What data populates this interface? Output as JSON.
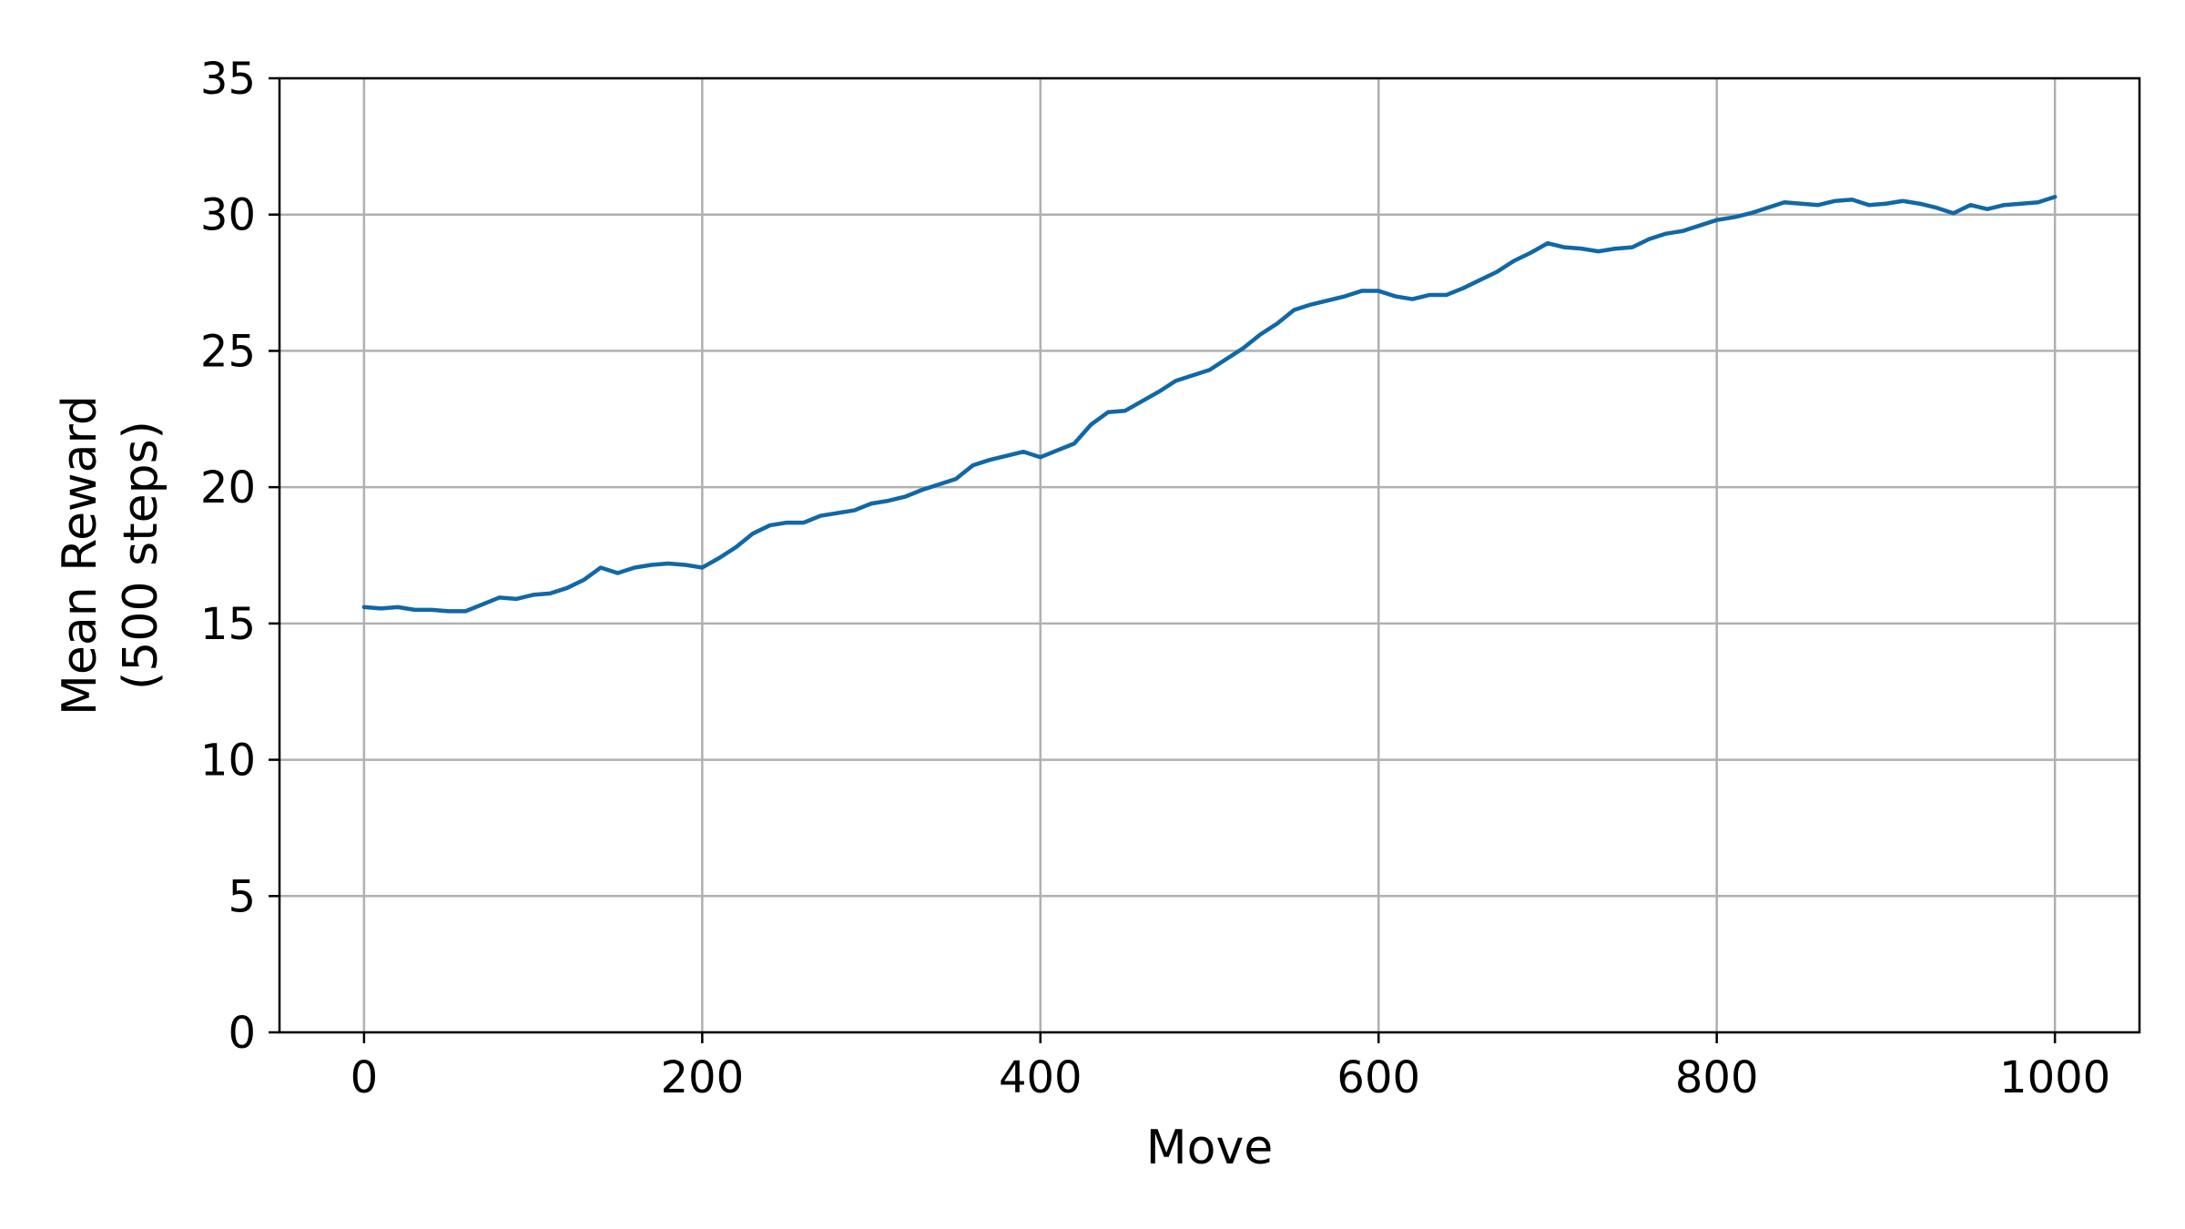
{
  "chart_data": {
    "type": "line",
    "title": "",
    "xlabel": "Move",
    "ylabel_lines": [
      "Mean Reward",
      "(500 steps)"
    ],
    "xlim": [
      -50,
      1050
    ],
    "ylim": [
      0,
      35
    ],
    "x_ticks": [
      0,
      200,
      400,
      600,
      800,
      1000
    ],
    "y_ticks": [
      0,
      5,
      10,
      15,
      20,
      25,
      30,
      35
    ],
    "grid": true,
    "legend": "none",
    "colors": {
      "line": "#1068a6",
      "grid": "#b0b0b0",
      "axis": "#000000"
    },
    "series": [
      {
        "x": [
          0,
          10,
          20,
          30,
          40,
          50,
          60,
          70,
          80,
          90,
          100,
          110,
          120,
          130,
          140,
          150,
          160,
          170,
          180,
          190,
          200,
          210,
          220,
          230,
          240,
          250,
          260,
          270,
          280,
          290,
          300,
          310,
          320,
          330,
          340,
          350,
          360,
          370,
          380,
          390,
          400,
          410,
          420,
          430,
          440,
          450,
          460,
          470,
          480,
          490,
          500,
          510,
          520,
          530,
          540,
          550,
          560,
          570,
          580,
          590,
          600,
          610,
          620,
          630,
          640,
          650,
          660,
          670,
          680,
          690,
          700,
          710,
          720,
          730,
          740,
          750,
          760,
          770,
          780,
          790,
          800,
          810,
          820,
          830,
          840,
          850,
          860,
          870,
          880,
          890,
          900,
          910,
          920,
          930,
          940,
          950,
          960,
          970,
          980,
          990,
          1000
        ],
        "values": [
          15.6,
          15.55,
          15.6,
          15.5,
          15.5,
          15.45,
          15.45,
          15.7,
          15.95,
          15.9,
          16.05,
          16.1,
          16.3,
          16.6,
          17.05,
          16.85,
          17.05,
          17.15,
          17.2,
          17.15,
          17.05,
          17.4,
          17.8,
          18.3,
          18.6,
          18.7,
          18.7,
          18.95,
          19.05,
          19.15,
          19.4,
          19.5,
          19.65,
          19.9,
          20.1,
          20.3,
          20.8,
          21.0,
          21.15,
          21.3,
          21.1,
          21.35,
          21.6,
          22.3,
          22.75,
          22.8,
          23.15,
          23.5,
          23.9,
          24.1,
          24.3,
          24.7,
          25.1,
          25.6,
          26.0,
          26.5,
          26.7,
          26.85,
          27.0,
          27.2,
          27.2,
          27.0,
          26.9,
          27.05,
          27.05,
          27.3,
          27.6,
          27.9,
          28.3,
          28.6,
          28.95,
          28.8,
          28.75,
          28.65,
          28.75,
          28.8,
          29.1,
          29.3,
          29.4,
          29.6,
          29.8,
          29.9,
          30.05,
          30.25,
          30.45,
          30.4,
          30.35,
          30.5,
          30.55,
          30.35,
          30.4,
          30.5,
          30.4,
          30.25,
          30.05,
          30.35,
          30.2,
          30.35,
          30.4,
          30.45,
          30.65
        ]
      }
    ]
  }
}
